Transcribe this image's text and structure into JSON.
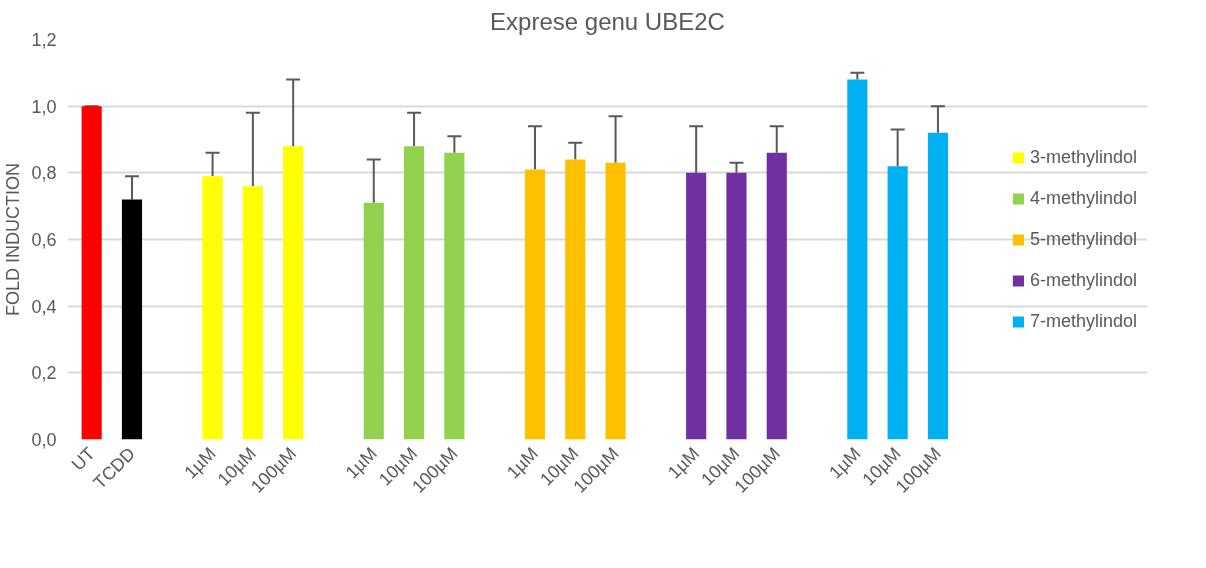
{
  "chart_data": {
    "type": "bar",
    "title": "Exprese genu UBE2C",
    "ylabel": "FOLD INDUCTION",
    "categories": [
      "UT",
      "TCDD",
      null,
      "1µM",
      "10µM",
      "100µM",
      null,
      "1µM",
      "10µM",
      "100µM",
      null,
      "1µM",
      "10µM",
      "100µM",
      null,
      "1µM",
      "10µM",
      "100µM",
      null,
      "1µM",
      "10µM",
      "100µM"
    ],
    "series": [
      {
        "color": "#ff0000",
        "values": [
          1.0,
          null,
          null,
          null,
          null,
          null,
          null,
          null,
          null,
          null,
          null,
          null,
          null,
          null,
          null,
          null,
          null,
          null,
          null,
          null,
          null,
          null
        ],
        "errors": [
          [
            1.0,
            1.0
          ],
          null,
          null,
          null,
          null,
          null,
          null,
          null,
          null,
          null,
          null,
          null,
          null,
          null,
          null,
          null,
          null,
          null,
          null,
          null,
          null,
          null
        ]
      },
      {
        "color": "#000000",
        "values": [
          null,
          0.72,
          null,
          null,
          null,
          null,
          null,
          null,
          null,
          null,
          null,
          null,
          null,
          null,
          null,
          null,
          null,
          null,
          null,
          null,
          null,
          null
        ],
        "errors": [
          null,
          [
            0.72,
            0.79
          ],
          null,
          null,
          null,
          null,
          null,
          null,
          null,
          null,
          null,
          null,
          null,
          null,
          null,
          null,
          null,
          null,
          null,
          null,
          null,
          null
        ]
      },
      {
        "name": "3-methylindol",
        "color": "#ffff00",
        "values": [
          null,
          null,
          null,
          0.79,
          0.76,
          0.88,
          null,
          null,
          null,
          null,
          null,
          null,
          null,
          null,
          null,
          null,
          null,
          null,
          null,
          null,
          null,
          null
        ],
        "errors": [
          null,
          null,
          null,
          [
            0.79,
            0.86
          ],
          [
            0.76,
            0.98
          ],
          [
            0.88,
            1.08
          ],
          null,
          null,
          null,
          null,
          null,
          null,
          null,
          null,
          null,
          null,
          null,
          null,
          null,
          null,
          null,
          null
        ]
      },
      {
        "name": "4-methylindol",
        "color": "#92d050",
        "values": [
          null,
          null,
          null,
          null,
          null,
          null,
          null,
          0.71,
          0.88,
          0.86,
          null,
          null,
          null,
          null,
          null,
          null,
          null,
          null,
          null,
          null,
          null,
          null
        ],
        "errors": [
          null,
          null,
          null,
          null,
          null,
          null,
          null,
          [
            0.71,
            0.84
          ],
          [
            0.88,
            0.98
          ],
          [
            0.86,
            0.91
          ],
          null,
          null,
          null,
          null,
          null,
          null,
          null,
          null,
          null,
          null,
          null,
          null
        ]
      },
      {
        "name": "5-methylindol",
        "color": "#ffc000",
        "values": [
          null,
          null,
          null,
          null,
          null,
          null,
          null,
          null,
          null,
          null,
          null,
          0.81,
          0.84,
          0.83,
          null,
          null,
          null,
          null,
          null,
          null,
          null,
          null
        ],
        "errors": [
          null,
          null,
          null,
          null,
          null,
          null,
          null,
          null,
          null,
          null,
          null,
          [
            0.81,
            0.94
          ],
          [
            0.84,
            0.89
          ],
          [
            0.83,
            0.97
          ],
          null,
          null,
          null,
          null,
          null,
          null,
          null,
          null
        ]
      },
      {
        "name": "6-methylindol",
        "color": "#7030a0",
        "values": [
          null,
          null,
          null,
          null,
          null,
          null,
          null,
          null,
          null,
          null,
          null,
          null,
          null,
          null,
          null,
          0.8,
          0.8,
          0.86,
          null,
          null,
          null,
          null
        ],
        "errors": [
          null,
          null,
          null,
          null,
          null,
          null,
          null,
          null,
          null,
          null,
          null,
          null,
          null,
          null,
          null,
          [
            0.8,
            0.94
          ],
          [
            0.8,
            0.83
          ],
          [
            0.86,
            0.94
          ],
          null,
          null,
          null,
          null
        ]
      },
      {
        "name": "7-methylindol",
        "color": "#00b0f0",
        "values": [
          null,
          null,
          null,
          null,
          null,
          null,
          null,
          null,
          null,
          null,
          null,
          null,
          null,
          null,
          null,
          null,
          null,
          null,
          null,
          1.08,
          0.82,
          0.92
        ],
        "errors": [
          null,
          null,
          null,
          null,
          null,
          null,
          null,
          null,
          null,
          null,
          null,
          null,
          null,
          null,
          null,
          null,
          null,
          null,
          null,
          [
            1.08,
            1.1
          ],
          [
            0.82,
            0.93
          ],
          [
            0.92,
            1.0
          ]
        ]
      }
    ],
    "ylim": [
      0,
      1.2
    ],
    "yticks": [
      {
        "value": 0,
        "label": "0,0"
      },
      {
        "value": 0.2,
        "label": "0,2"
      },
      {
        "value": 0.4,
        "label": "0,4"
      },
      {
        "value": 0.6,
        "label": "0,6"
      },
      {
        "value": 0.8,
        "label": "0,8"
      },
      {
        "value": 1.0,
        "label": "1,0"
      },
      {
        "value": 1.2,
        "label": "1,2"
      }
    ],
    "grid": "y",
    "legend": "right"
  }
}
